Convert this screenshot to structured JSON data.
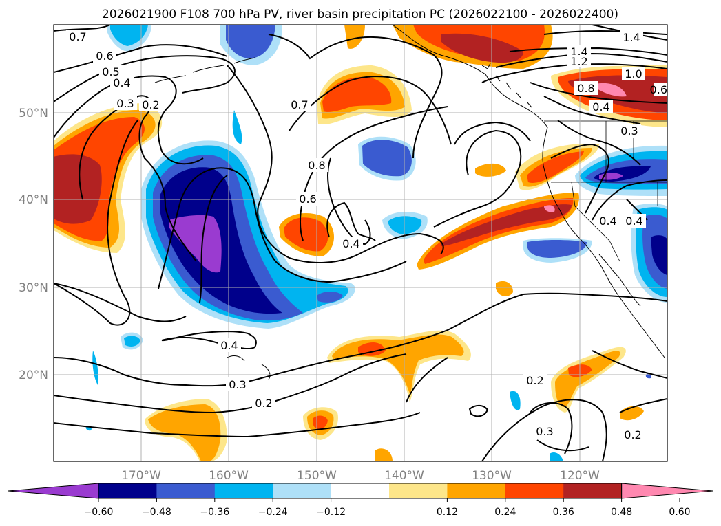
{
  "title": "2026021900 F108 700 hPa PV, river basin precipitation PC (2026022100 - 2026022400)",
  "lat_labels": [
    "50°N",
    "40°N",
    "30°N",
    "20°N"
  ],
  "lon_labels": [
    "170°W",
    "160°W",
    "150°W",
    "140°W",
    "130°W",
    "120°W"
  ],
  "contour_labels": [
    "0.7",
    "0.6",
    "0.5",
    "0.4",
    "0.3",
    "0.2",
    "0.7",
    "0.8",
    "0.6",
    "0.4",
    "1.4",
    "1.4",
    "1.2",
    "1.0",
    "0.8",
    "0.6",
    "0.4",
    "0.3",
    "0.4",
    "0.4",
    "0.4",
    "0.3",
    "0.2",
    "0.2",
    "0.3",
    "0.2"
  ],
  "colorbar": {
    "ticks": [
      "−0.60",
      "−0.48",
      "−0.36",
      "−0.24",
      "−0.12",
      "0.12",
      "0.24",
      "0.36",
      "0.48",
      "0.60"
    ],
    "colors": [
      "#9a3bd0",
      "#00008b",
      "#3a5bd0",
      "#00b4f0",
      "#aee0f8",
      "#ffffff",
      "#fde68a",
      "#ffa500",
      "#ff4500",
      "#b22222",
      "#ff88b0"
    ]
  },
  "map_data": {
    "projection": "equirectangular",
    "lon_range": [
      "180°W",
      "110°W"
    ],
    "lat_range": [
      "10°N",
      "60°N"
    ],
    "fields": [
      "700 hPa PV (contours)",
      "river basin precipitation PC (shaded)"
    ]
  }
}
